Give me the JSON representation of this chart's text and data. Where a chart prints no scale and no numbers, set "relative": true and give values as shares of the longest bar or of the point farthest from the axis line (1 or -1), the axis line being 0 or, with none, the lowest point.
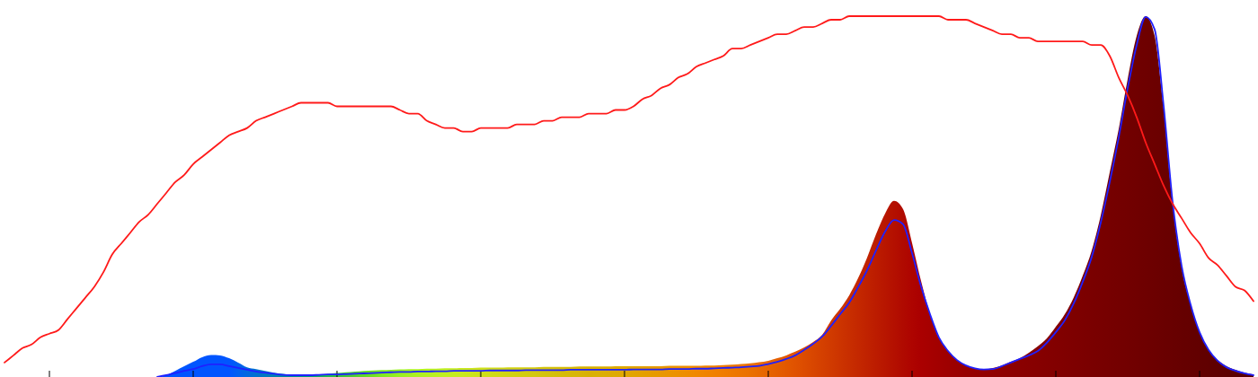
{
  "chart_data": {
    "type": "line",
    "relative": true,
    "categories": [
      null,
      null,
      null,
      null,
      null,
      null,
      null,
      null,
      null,
      null,
      null,
      null,
      null,
      null,
      null,
      null,
      null,
      null,
      null,
      null,
      null,
      null,
      null,
      null,
      null,
      null,
      null,
      null,
      null,
      null,
      null,
      null,
      null,
      null,
      null,
      null,
      null,
      null,
      null,
      null,
      null,
      null,
      null,
      null,
      null,
      null,
      null,
      null,
      null,
      null,
      null,
      null,
      null,
      null,
      null,
      null,
      null,
      null,
      null,
      null,
      null,
      null,
      null,
      null,
      null,
      null,
      null,
      null,
      null,
      null,
      null,
      null,
      null,
      null,
      null,
      null,
      null,
      null,
      null,
      null,
      null,
      null,
      null,
      null,
      null,
      null,
      null,
      null,
      null,
      null,
      null,
      null,
      null,
      null,
      null,
      null,
      null,
      null,
      null,
      null,
      null,
      null,
      null,
      null,
      null,
      null,
      null,
      null,
      null,
      null,
      null,
      null,
      null,
      null,
      null,
      null,
      null,
      null,
      null,
      null,
      null,
      null,
      null,
      null,
      null,
      null,
      null,
      null,
      null,
      null,
      null,
      null,
      null,
      null,
      null,
      null,
      null,
      null,
      null,
      null
    ],
    "series": [
      {
        "type": "area",
        "colors": [
          "#0055ff",
          "#0055ff",
          "#0055ff",
          "#0055ff",
          "#0055ff",
          "#0055ff",
          "#0055ff",
          "#0055ff",
          "#0055ff",
          "#0055ff",
          "#0055ff",
          "#0055ff",
          "#0055ff",
          "#0055ff",
          "#0055ff",
          "#0055ff",
          "#0055ff",
          "#0055ff",
          "#0055ff",
          "#0055ff",
          "#0055ff",
          "#0055ff",
          "#0055ff",
          "#0055ff",
          "#0055ff",
          "#0055ff",
          "#0060f0",
          "#0068e0",
          "#0070d0",
          "#0078c0",
          "#0080b0",
          "#0088a0",
          "#009090",
          "#009a80",
          "#00a470",
          "#10ae60",
          "#20b850",
          "#30c040",
          "#40c838",
          "#50d030",
          "#60d828",
          "#70e020",
          "#80e820",
          "#8cec20",
          "#98f020",
          "#a4f020",
          "#acf020",
          "#b4f020",
          "#baf020",
          "#c0f020",
          "#c4ec20",
          "#c8e820",
          "#cae41c",
          "#cce018",
          "#cedc18",
          "#d0d814",
          "#d0d414",
          "#d2d010",
          "#d2cc10",
          "#d4c810",
          "#d4c40c",
          "#d4c00c",
          "#d6bc08",
          "#d6b808",
          "#d8b408",
          "#d8b004",
          "#dab004",
          "#dcac04",
          "#deaa04",
          "#e0a800",
          "#e2a400",
          "#e4a000",
          "#e69c00",
          "#e89800",
          "#ea9400",
          "#ec9000",
          "#ee8c00",
          "#f08800",
          "#f08400",
          "#f08000",
          "#f07c00",
          "#ee7800",
          "#ec7400",
          "#ea7000",
          "#e86a00",
          "#e66400",
          "#e45e00",
          "#e25800",
          "#e05200",
          "#dc4c00",
          "#d84600",
          "#d44000",
          "#d03a00",
          "#cc3400",
          "#c82e00",
          "#c42800",
          "#c02200",
          "#bc1c00",
          "#b81600",
          "#b41000",
          "#b00a00",
          "#ae0400",
          "#aa0000",
          "#a60000",
          "#a20000",
          "#9e0000",
          "#9a0000",
          "#960000",
          "#940000",
          "#920000",
          "#900000",
          "#8e0000",
          "#8c0000",
          "#8a0000",
          "#880000",
          "#860000",
          "#840000",
          "#820000",
          "#800000",
          "#7e0000",
          "#7c0000",
          "#7a0000",
          "#780000",
          "#760000",
          "#740000",
          "#720000",
          "#700000",
          "#6e0000",
          "#6c0000",
          "#6a0000",
          "#680000",
          "#660000",
          "#640000",
          "#620000",
          "#600000",
          "#5e0000",
          "#5c0000",
          "#5a0000",
          "#580000",
          "#560000"
        ],
        "values": [
          0,
          0,
          0,
          0,
          0,
          0,
          0,
          0,
          0,
          0,
          0,
          0,
          0,
          0,
          0,
          0,
          0,
          0,
          0.005,
          0.017,
          0.03,
          0.042,
          0.055,
          0.061,
          0.06,
          0.052,
          0.04,
          0.027,
          0.022,
          0.017,
          0.012,
          0.009,
          0.006,
          0.005,
          0.006,
          0.007,
          0.009,
          0.011,
          0.013,
          0.015,
          0.017,
          0.018,
          0.019,
          0.02,
          0.021,
          0.022,
          0.022,
          0.023,
          0.023,
          0.024,
          0.024,
          0.025,
          0.025,
          0.026,
          0.026,
          0.026,
          0.027,
          0.027,
          0.027,
          0.027,
          0.028,
          0.028,
          0.028,
          0.028,
          0.029,
          0.029,
          0.029,
          0.029,
          0.03,
          0.03,
          0.03,
          0.03,
          0.03,
          0.03,
          0.031,
          0.031,
          0.031,
          0.031,
          0.032,
          0.032,
          0.033,
          0.034,
          0.036,
          0.038,
          0.041,
          0.045,
          0.052,
          0.06,
          0.07,
          0.082,
          0.097,
          0.117,
          0.157,
          0.189,
          0.226,
          0.274,
          0.331,
          0.396,
          0.453,
          0.488,
          0.465,
          0.371,
          0.266,
          0.174,
          0.109,
          0.072,
          0.047,
          0.032,
          0.024,
          0.021,
          0.025,
          0.032,
          0.042,
          0.052,
          0.067,
          0.085,
          0.107,
          0.139,
          0.174,
          0.221,
          0.281,
          0.351,
          0.448,
          0.567,
          0.687,
          0.826,
          0.945,
          1,
          0.945,
          0.741,
          0.478,
          0.303,
          0.201,
          0.124,
          0.075,
          0.047,
          0.03,
          0.02,
          0.012,
          0.007
        ]
      },
      {
        "color": "#2020ff",
        "values": [
          null,
          null,
          null,
          null,
          null,
          null,
          null,
          null,
          null,
          null,
          null,
          null,
          null,
          null,
          null,
          null,
          null,
          0,
          0.005,
          0.011,
          0.017,
          0.022,
          0.03,
          0.035,
          0.035,
          0.03,
          0.025,
          0.02,
          0.015,
          0.012,
          0.009,
          0.006,
          0.005,
          0.005,
          0.005,
          0.006,
          0.007,
          0.007,
          0.008,
          0.009,
          0.01,
          0.011,
          0.012,
          0.013,
          0.014,
          0.014,
          0.015,
          0.015,
          0.016,
          0.016,
          0.017,
          0.017,
          0.017,
          0.017,
          0.018,
          0.018,
          0.018,
          0.018,
          0.019,
          0.019,
          0.019,
          0.019,
          0.019,
          0.02,
          0.02,
          0.02,
          0.02,
          0.02,
          0.02,
          0.02,
          0.021,
          0.021,
          0.021,
          0.021,
          0.022,
          0.022,
          0.022,
          0.023,
          0.023,
          0.024,
          0.025,
          0.026,
          0.027,
          0.029,
          0.031,
          0.036,
          0.042,
          0.05,
          0.06,
          0.075,
          0.092,
          0.112,
          0.142,
          0.174,
          0.206,
          0.249,
          0.296,
          0.351,
          0.403,
          0.435,
          0.423,
          0.343,
          0.251,
          0.174,
          0.109,
          0.072,
          0.047,
          0.032,
          0.024,
          0.021,
          0.022,
          0.03,
          0.04,
          0.05,
          0.06,
          0.072,
          0.095,
          0.124,
          0.157,
          0.204,
          0.264,
          0.333,
          0.428,
          0.54,
          0.664,
          0.801,
          0.92,
          0.998,
          0.963,
          0.751,
          0.485,
          0.308,
          0.201,
          0.124,
          0.075,
          0.045,
          0.027,
          0.017,
          0.01,
          0.005
        ]
      },
      {
        "color": "#ff1a1a",
        "values": [
          0.04,
          0.06,
          0.08,
          0.09,
          0.11,
          0.12,
          0.13,
          0.16,
          0.19,
          0.22,
          0.25,
          0.29,
          0.34,
          0.37,
          0.4,
          0.43,
          0.45,
          0.48,
          0.51,
          0.54,
          0.56,
          0.59,
          0.61,
          0.63,
          0.65,
          0.67,
          0.68,
          0.69,
          0.71,
          0.72,
          0.73,
          0.74,
          0.75,
          0.76,
          0.76,
          0.76,
          0.76,
          0.75,
          0.75,
          0.75,
          0.75,
          0.75,
          0.75,
          0.75,
          0.74,
          0.73,
          0.73,
          0.71,
          0.7,
          0.69,
          0.69,
          0.68,
          0.68,
          0.69,
          0.69,
          0.69,
          0.69,
          0.7,
          0.7,
          0.7,
          0.71,
          0.71,
          0.72,
          0.72,
          0.72,
          0.73,
          0.73,
          0.73,
          0.74,
          0.74,
          0.75,
          0.77,
          0.78,
          0.8,
          0.81,
          0.83,
          0.84,
          0.86,
          0.87,
          0.88,
          0.89,
          0.91,
          0.91,
          0.92,
          0.93,
          0.94,
          0.95,
          0.95,
          0.96,
          0.97,
          0.97,
          0.98,
          0.99,
          0.99,
          1,
          1,
          1,
          1,
          1,
          1,
          1,
          1,
          1,
          1,
          1,
          0.99,
          0.99,
          0.99,
          0.98,
          0.97,
          0.96,
          0.95,
          0.95,
          0.94,
          0.94,
          0.93,
          0.93,
          0.93,
          0.93,
          0.93,
          0.93,
          0.92,
          0.92,
          0.89,
          0.83,
          0.78,
          0.72,
          0.65,
          0.59,
          0.53,
          0.48,
          0.44,
          0.4,
          0.37,
          0.33,
          0.31,
          0.28,
          0.25,
          0.24,
          0.21
        ]
      }
    ]
  }
}
